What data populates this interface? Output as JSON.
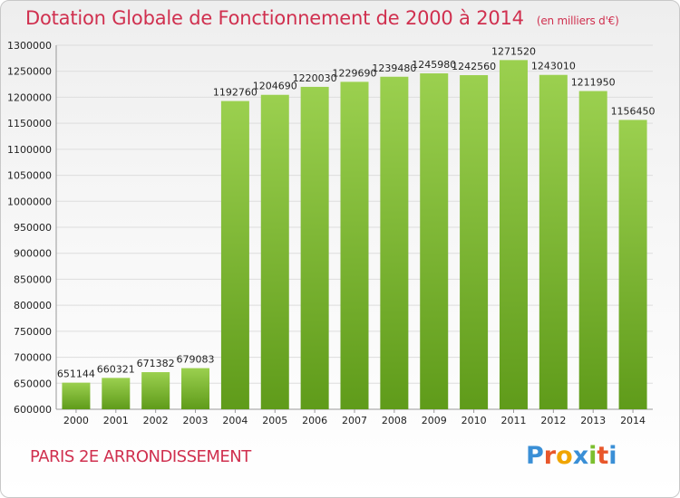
{
  "header": {
    "title": "Dotation Globale de Fonctionnement de 2000 à 2014",
    "unit": "(en milliers d'€)"
  },
  "footer": {
    "place": "PARIS 2E  ARRONDISSEMENT",
    "logo": "Proxiti"
  },
  "colors": {
    "title": "#d0304f",
    "bar_light": "#9bd04f",
    "bar_dark": "#5f9b1a",
    "grid": "#dddddd",
    "logo_letters": [
      "#3a8fd6",
      "#e8572b",
      "#f0a500",
      "#3a8fd6",
      "#7cbf2f",
      "#e8572b",
      "#3a8fd6"
    ]
  },
  "chart_data": {
    "type": "bar",
    "title": "Dotation Globale de Fonctionnement de 2000 à 2014",
    "xlabel": "",
    "ylabel": "(en milliers d'€)",
    "categories": [
      "2000",
      "2001",
      "2002",
      "2003",
      "2004",
      "2005",
      "2006",
      "2007",
      "2008",
      "2009",
      "2010",
      "2011",
      "2012",
      "2013",
      "2014"
    ],
    "values": [
      651144,
      660321,
      671382,
      679083,
      1192760,
      1204690,
      1220030,
      1229690,
      1239480,
      1245980,
      1242560,
      1271520,
      1243010,
      1211950,
      1156450
    ],
    "ylim": [
      600000,
      1300000
    ],
    "yticks": [
      600000,
      650000,
      700000,
      750000,
      800000,
      850000,
      900000,
      950000,
      1000000,
      1050000,
      1100000,
      1150000,
      1200000,
      1250000,
      1300000
    ],
    "grid": true
  }
}
